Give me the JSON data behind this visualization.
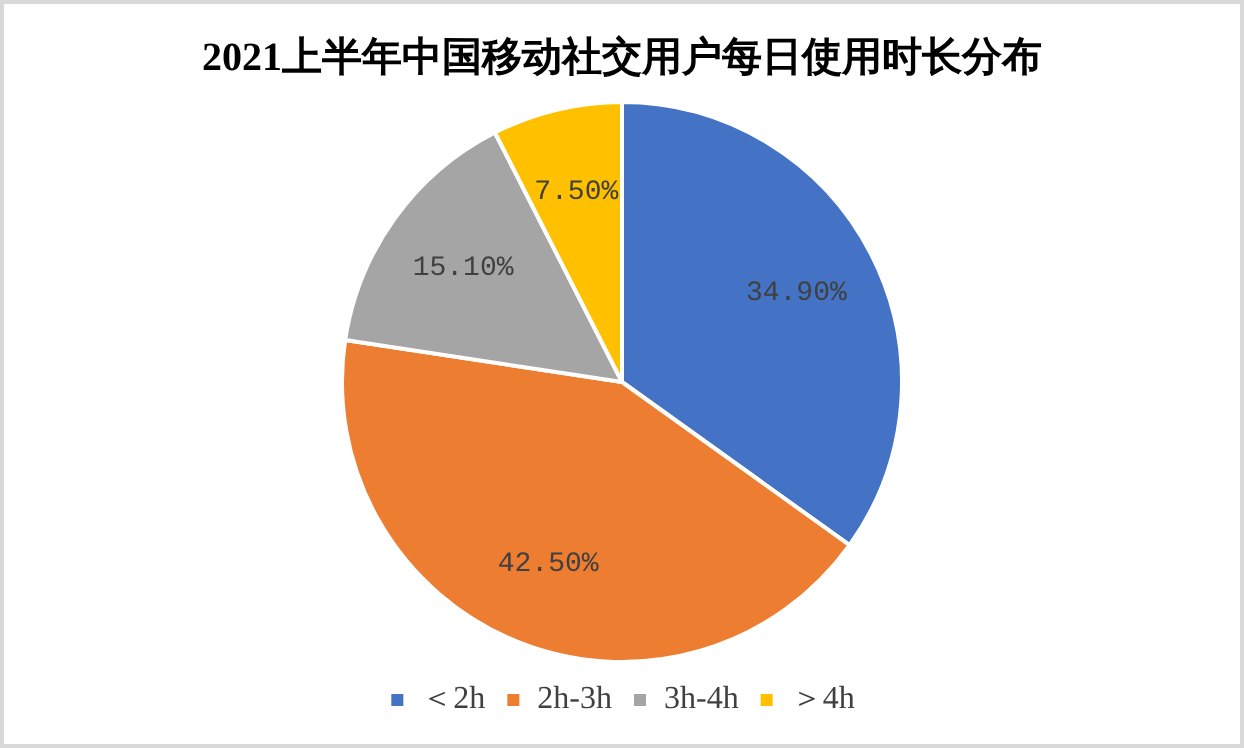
{
  "chart_data": {
    "type": "pie",
    "title": "2021上半年中国移动社交用户每日使用时长分布",
    "categories": [
      "＜2h",
      "2h-3h",
      "3h-4h",
      "＞4h"
    ],
    "values": [
      34.9,
      42.5,
      15.1,
      7.5
    ],
    "colors": [
      "#4472c4",
      "#ed7d31",
      "#a5a5a5",
      "#ffc000"
    ],
    "value_labels": [
      "34.90%",
      "42.50%",
      "15.10%",
      "7.50%"
    ],
    "legend": "bottom"
  }
}
